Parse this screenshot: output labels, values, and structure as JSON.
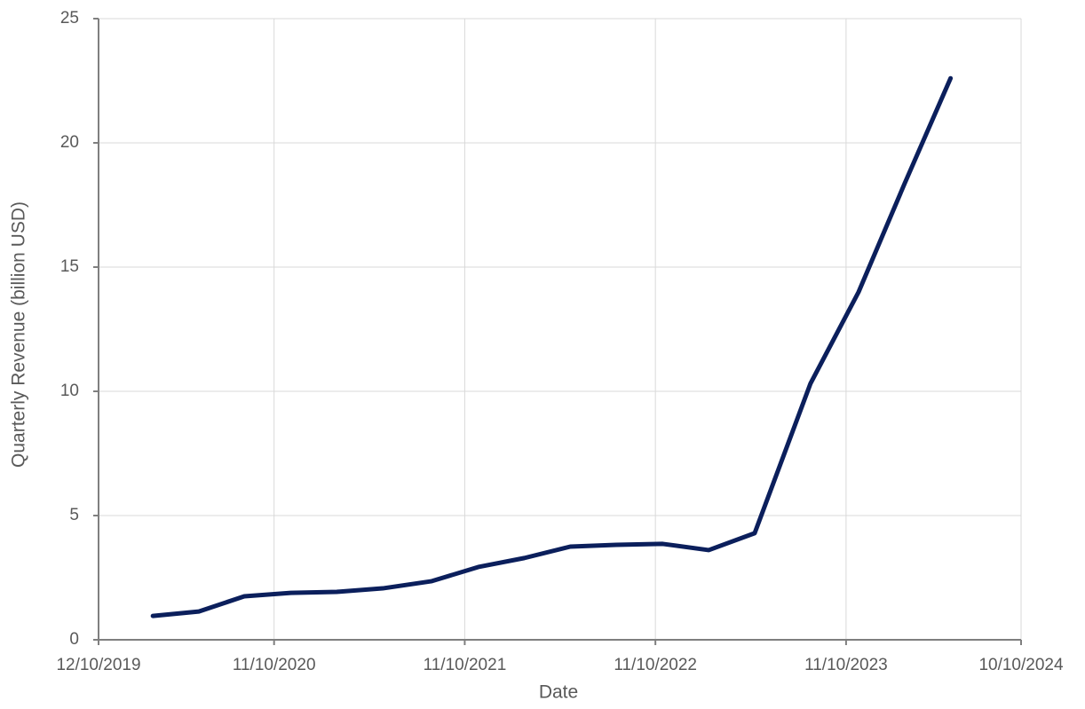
{
  "chart_data": {
    "type": "line",
    "x_label": "Date",
    "y_label": "Quarterly Revenue (billion USD)",
    "x": [
      "3/23/2020",
      "6/19/2020",
      "9/14/2020",
      "12/12/2020",
      "3/10/2021",
      "6/6/2021",
      "9/8/2021",
      "12/6/2021",
      "3/4/2022",
      "5/31/2022",
      "8/27/2022",
      "11/24/2022",
      "2/20/2023",
      "5/19/2023",
      "9/3/2023",
      "12/4/2023",
      "3/1/2024",
      "5/28/2024"
    ],
    "series": [
      {
        "name": "Quarterly Revenue",
        "color": "#0b1f5c",
        "values": [
          0.96,
          1.14,
          1.75,
          1.89,
          1.93,
          2.07,
          2.36,
          2.93,
          3.29,
          3.75,
          3.82,
          3.86,
          3.61,
          4.29,
          10.32,
          14.0,
          18.36,
          22.6
        ]
      }
    ],
    "xlim": [
      "12/10/2019",
      "10/10/2024"
    ],
    "xticks": [
      "12/10/2019",
      "11/10/2020",
      "11/10/2021",
      "11/10/2022",
      "11/10/2023",
      "10/10/2024"
    ],
    "ylim": [
      0,
      25
    ],
    "yticks": [
      0,
      5,
      10,
      15,
      20,
      25
    ],
    "grid": true
  }
}
